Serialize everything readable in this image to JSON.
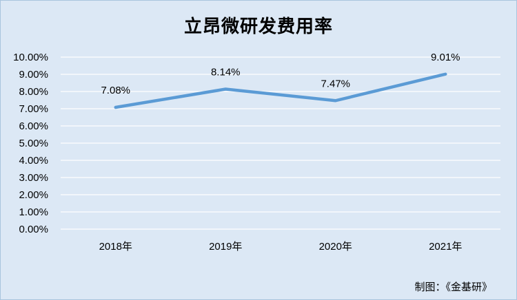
{
  "chart_data": {
    "type": "line",
    "title": "立昂微研发费用率",
    "categories": [
      "2018年",
      "2019年",
      "2020年",
      "2021年"
    ],
    "series": [
      {
        "values": [
          7.08,
          8.14,
          7.47,
          9.01
        ],
        "labels": [
          "7.08%",
          "8.14%",
          "7.47%",
          "9.01%"
        ],
        "color": "#5b9bd5"
      }
    ],
    "yticks": [
      "0.00%",
      "1.00%",
      "2.00%",
      "3.00%",
      "4.00%",
      "5.00%",
      "6.00%",
      "7.00%",
      "8.00%",
      "9.00%",
      "10.00%"
    ],
    "ylim": [
      0,
      10
    ],
    "grid": true,
    "legend": "none"
  },
  "credit": "制图：《金基研》"
}
